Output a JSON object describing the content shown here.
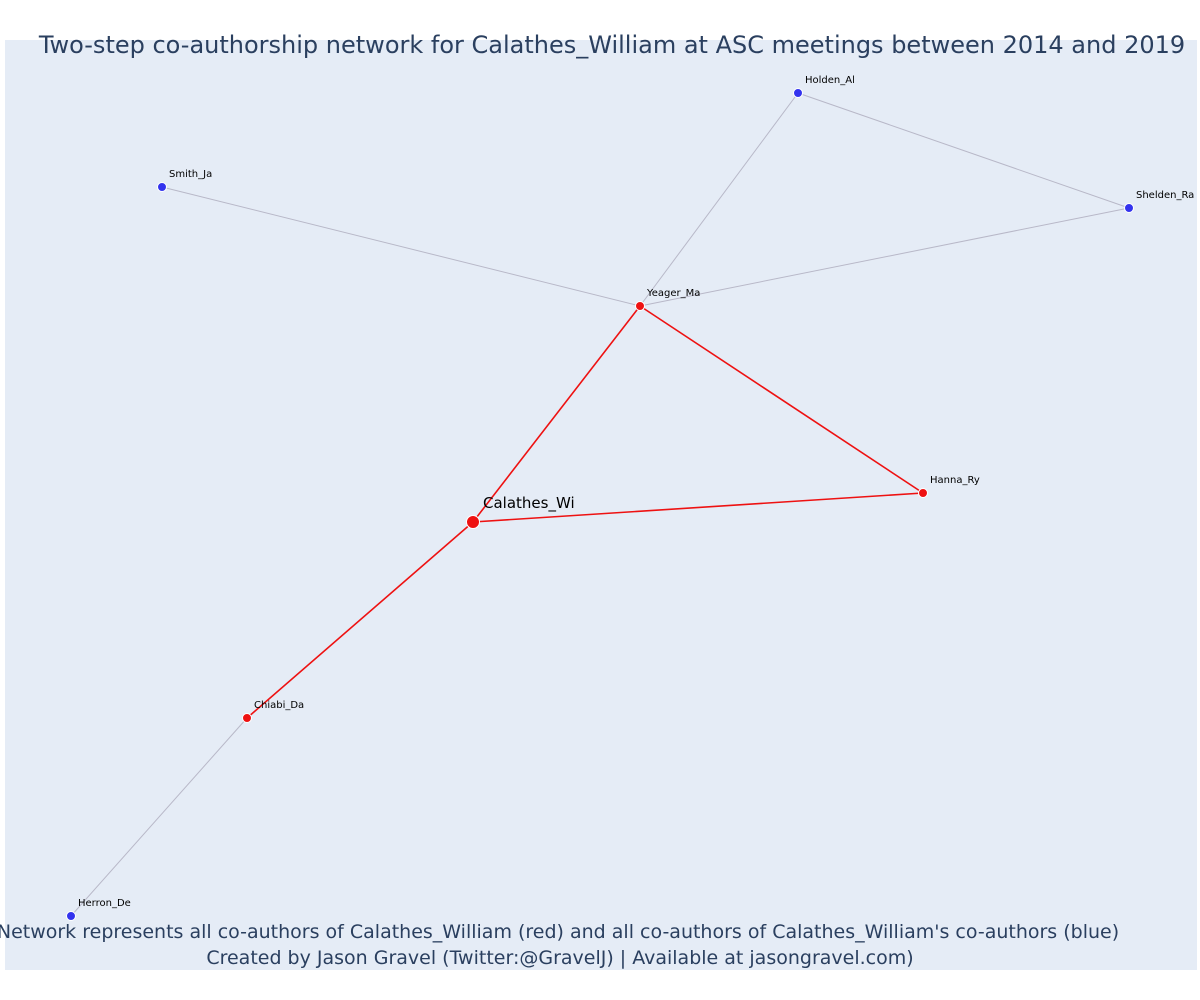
{
  "title": "Two-step co-authorship network for Calathes_William at ASC meetings between 2014 and 2019",
  "caption": {
    "line1": "Network represents all co-authors of Calathes_William (red) and all co-authors of Calathes_William's co-authors (blue)",
    "line2": "Created by Jason Gravel (Twitter:@GravelJ) | Available at jasongravel.com)"
  },
  "colors": {
    "plot_background": "#e5ecf6",
    "text": "#2a3f5f",
    "ego_and_coauthor_nodes": "#ee1111",
    "second_step_nodes": "#3333ee",
    "primary_edges": "#ee1111",
    "secondary_edges": "#b8b8c8"
  },
  "nodes": [
    {
      "id": "calathes",
      "label": "Calathes_Wi",
      "group": "ego"
    },
    {
      "id": "yeager",
      "label": "Yeager_Ma",
      "group": "coauthor"
    },
    {
      "id": "hanna",
      "label": "Hanna_Ry",
      "group": "coauthor"
    },
    {
      "id": "chiabi",
      "label": "Chiabi_Da",
      "group": "coauthor"
    },
    {
      "id": "holden",
      "label": "Holden_Al",
      "group": "second"
    },
    {
      "id": "shelden",
      "label": "Shelden_Ra",
      "group": "second"
    },
    {
      "id": "smith",
      "label": "Smith_Ja",
      "group": "second"
    },
    {
      "id": "herron",
      "label": "Herron_De",
      "group": "second"
    }
  ],
  "edges": [
    {
      "source": "calathes",
      "target": "yeager",
      "type": "primary"
    },
    {
      "source": "calathes",
      "target": "hanna",
      "type": "primary"
    },
    {
      "source": "calathes",
      "target": "chiabi",
      "type": "primary"
    },
    {
      "source": "yeager",
      "target": "hanna",
      "type": "primary"
    },
    {
      "source": "yeager",
      "target": "holden",
      "type": "secondary"
    },
    {
      "source": "yeager",
      "target": "shelden",
      "type": "secondary"
    },
    {
      "source": "yeager",
      "target": "smith",
      "type": "secondary"
    },
    {
      "source": "holden",
      "target": "shelden",
      "type": "secondary"
    },
    {
      "source": "chiabi",
      "target": "herron",
      "type": "secondary"
    }
  ]
}
